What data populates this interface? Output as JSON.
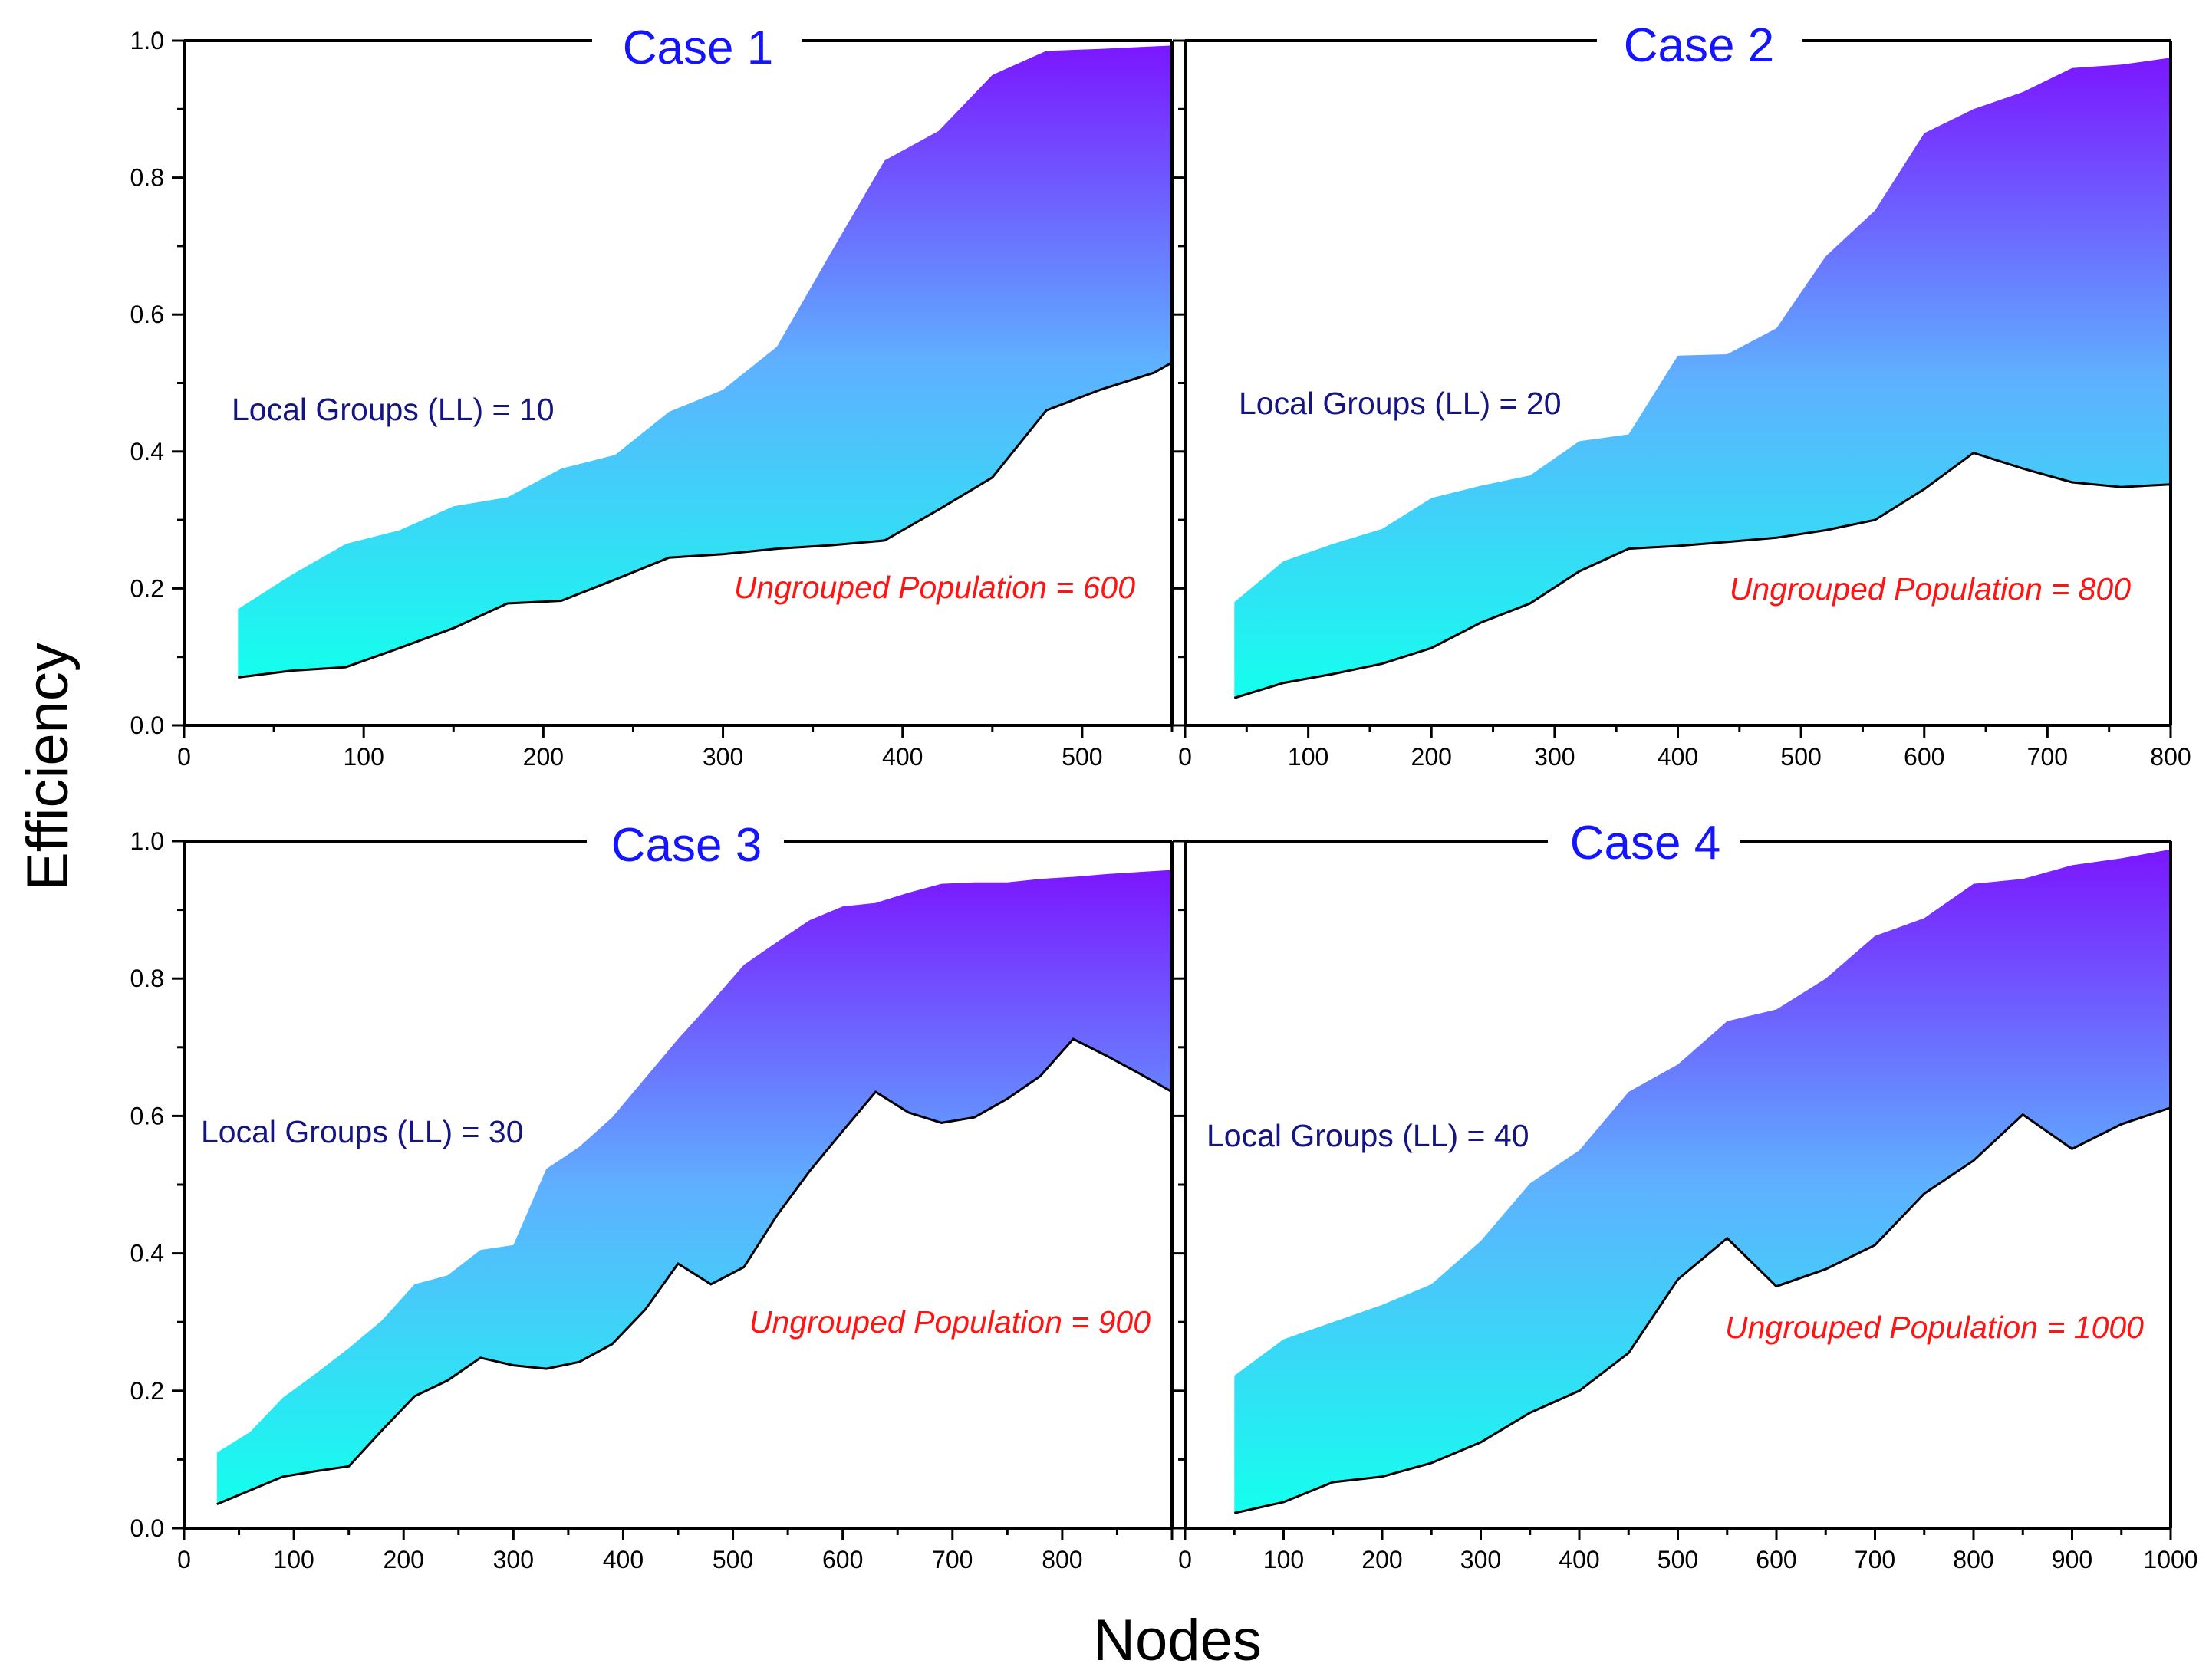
{
  "figure": {
    "ylabel": "Efficiency",
    "xlabel": "Nodes",
    "colors": {
      "band_top": "#7b16ff",
      "band_bottom": "#14ffee",
      "case_title": "#1414ff",
      "groups_label": "#141482",
      "population_label": "#ff1414"
    }
  },
  "chart_data": [
    {
      "type": "area",
      "title": "Case 1",
      "xlim": [
        0,
        550
      ],
      "ylim": [
        0,
        1.0
      ],
      "xticks": [
        "0",
        "100",
        "200",
        "300",
        "400",
        "500"
      ],
      "yticks": [
        "0.0",
        "0.2",
        "0.4",
        "0.6",
        "0.8",
        "1.0"
      ],
      "groups_label": "Local Groups (LL) = 10",
      "population_label": "Ungrouped Population = 600",
      "upper": [
        [
          30,
          0.17
        ],
        [
          60,
          0.22
        ],
        [
          90,
          0.265
        ],
        [
          120,
          0.285
        ],
        [
          150,
          0.32
        ],
        [
          180,
          0.333
        ],
        [
          210,
          0.375
        ],
        [
          240,
          0.395
        ],
        [
          270,
          0.458
        ],
        [
          300,
          0.49
        ],
        [
          330,
          0.553
        ],
        [
          360,
          0.69
        ],
        [
          390,
          0.825
        ],
        [
          420,
          0.868
        ],
        [
          450,
          0.95
        ],
        [
          480,
          0.985
        ],
        [
          510,
          0.988
        ],
        [
          550,
          0.993
        ]
      ],
      "lower": [
        [
          30,
          0.07
        ],
        [
          60,
          0.08
        ],
        [
          90,
          0.085
        ],
        [
          120,
          0.113
        ],
        [
          150,
          0.142
        ],
        [
          180,
          0.178
        ],
        [
          210,
          0.182
        ],
        [
          240,
          0.213
        ],
        [
          270,
          0.245
        ],
        [
          300,
          0.25
        ],
        [
          330,
          0.258
        ],
        [
          360,
          0.263
        ],
        [
          390,
          0.27
        ],
        [
          420,
          0.315
        ],
        [
          450,
          0.362
        ],
        [
          480,
          0.46
        ],
        [
          510,
          0.49
        ],
        [
          540,
          0.515
        ],
        [
          550,
          0.53
        ]
      ]
    },
    {
      "type": "area",
      "title": "Case 2",
      "xlim": [
        0,
        800
      ],
      "ylim": [
        0,
        1.0
      ],
      "xticks": [
        "0",
        "100",
        "200",
        "300",
        "400",
        "500",
        "600",
        "700",
        "800"
      ],
      "yticks": [],
      "groups_label": "Local Groups (LL) = 20",
      "population_label": "Ungrouped Population = 800",
      "upper": [
        [
          40,
          0.18
        ],
        [
          80,
          0.24
        ],
        [
          120,
          0.265
        ],
        [
          160,
          0.287
        ],
        [
          200,
          0.332
        ],
        [
          240,
          0.35
        ],
        [
          280,
          0.365
        ],
        [
          320,
          0.415
        ],
        [
          360,
          0.425
        ],
        [
          400,
          0.54
        ],
        [
          440,
          0.542
        ],
        [
          480,
          0.58
        ],
        [
          520,
          0.685
        ],
        [
          560,
          0.752
        ],
        [
          600,
          0.865
        ],
        [
          640,
          0.9
        ],
        [
          680,
          0.925
        ],
        [
          720,
          0.96
        ],
        [
          760,
          0.965
        ],
        [
          800,
          0.975
        ]
      ],
      "lower": [
        [
          40,
          0.04
        ],
        [
          80,
          0.062
        ],
        [
          120,
          0.075
        ],
        [
          160,
          0.09
        ],
        [
          200,
          0.113
        ],
        [
          240,
          0.15
        ],
        [
          280,
          0.178
        ],
        [
          320,
          0.225
        ],
        [
          360,
          0.258
        ],
        [
          400,
          0.262
        ],
        [
          440,
          0.268
        ],
        [
          480,
          0.274
        ],
        [
          520,
          0.285
        ],
        [
          560,
          0.3
        ],
        [
          600,
          0.345
        ],
        [
          640,
          0.398
        ],
        [
          680,
          0.375
        ],
        [
          720,
          0.355
        ],
        [
          760,
          0.348
        ],
        [
          800,
          0.352
        ]
      ]
    },
    {
      "type": "area",
      "title": "Case 3",
      "xlim": [
        0,
        900
      ],
      "ylim": [
        0,
        1.0
      ],
      "xticks": [
        "0",
        "100",
        "200",
        "300",
        "400",
        "500",
        "600",
        "700",
        "800"
      ],
      "yticks": [
        "0.0",
        "0.2",
        "0.4",
        "0.6",
        "0.8",
        "1.0"
      ],
      "groups_label": "Local Groups (LL) = 30",
      "population_label": "Ungrouped Population = 900",
      "upper": [
        [
          30,
          0.11
        ],
        [
          60,
          0.14
        ],
        [
          90,
          0.19
        ],
        [
          120,
          0.225
        ],
        [
          150,
          0.262
        ],
        [
          180,
          0.302
        ],
        [
          210,
          0.355
        ],
        [
          240,
          0.368
        ],
        [
          270,
          0.405
        ],
        [
          300,
          0.412
        ],
        [
          330,
          0.523
        ],
        [
          360,
          0.555
        ],
        [
          390,
          0.598
        ],
        [
          420,
          0.655
        ],
        [
          450,
          0.712
        ],
        [
          480,
          0.765
        ],
        [
          510,
          0.82
        ],
        [
          540,
          0.853
        ],
        [
          570,
          0.885
        ],
        [
          600,
          0.905
        ],
        [
          630,
          0.91
        ],
        [
          660,
          0.925
        ],
        [
          690,
          0.938
        ],
        [
          720,
          0.94
        ],
        [
          750,
          0.94
        ],
        [
          780,
          0.945
        ],
        [
          810,
          0.948
        ],
        [
          840,
          0.952
        ],
        [
          870,
          0.955
        ],
        [
          900,
          0.958
        ]
      ],
      "lower": [
        [
          30,
          0.035
        ],
        [
          60,
          0.055
        ],
        [
          90,
          0.075
        ],
        [
          120,
          0.083
        ],
        [
          150,
          0.09
        ],
        [
          180,
          0.142
        ],
        [
          210,
          0.192
        ],
        [
          240,
          0.215
        ],
        [
          270,
          0.248
        ],
        [
          300,
          0.237
        ],
        [
          330,
          0.232
        ],
        [
          360,
          0.242
        ],
        [
          390,
          0.268
        ],
        [
          420,
          0.318
        ],
        [
          450,
          0.385
        ],
        [
          480,
          0.355
        ],
        [
          510,
          0.38
        ],
        [
          540,
          0.455
        ],
        [
          570,
          0.52
        ],
        [
          600,
          0.578
        ],
        [
          630,
          0.635
        ],
        [
          660,
          0.605
        ],
        [
          690,
          0.59
        ],
        [
          720,
          0.598
        ],
        [
          750,
          0.625
        ],
        [
          780,
          0.658
        ],
        [
          810,
          0.712
        ],
        [
          840,
          0.688
        ],
        [
          870,
          0.662
        ],
        [
          900,
          0.635
        ]
      ]
    },
    {
      "type": "area",
      "title": "Case 4",
      "xlim": [
        0,
        1000
      ],
      "ylim": [
        0,
        1.0
      ],
      "xticks": [
        "0",
        "100",
        "200",
        "300",
        "400",
        "500",
        "600",
        "700",
        "800",
        "900",
        "1000"
      ],
      "yticks": [],
      "groups_label": "Local Groups (LL) = 40",
      "population_label": "Ungrouped Population = 1000",
      "upper": [
        [
          50,
          0.222
        ],
        [
          100,
          0.275
        ],
        [
          150,
          0.3
        ],
        [
          200,
          0.325
        ],
        [
          250,
          0.355
        ],
        [
          300,
          0.418
        ],
        [
          350,
          0.502
        ],
        [
          400,
          0.55
        ],
        [
          450,
          0.635
        ],
        [
          500,
          0.675
        ],
        [
          550,
          0.738
        ],
        [
          600,
          0.755
        ],
        [
          650,
          0.8
        ],
        [
          700,
          0.862
        ],
        [
          750,
          0.888
        ],
        [
          800,
          0.938
        ],
        [
          850,
          0.945
        ],
        [
          900,
          0.965
        ],
        [
          950,
          0.975
        ],
        [
          1000,
          0.988
        ]
      ],
      "lower": [
        [
          50,
          0.022
        ],
        [
          100,
          0.038
        ],
        [
          150,
          0.067
        ],
        [
          200,
          0.075
        ],
        [
          250,
          0.095
        ],
        [
          300,
          0.125
        ],
        [
          350,
          0.168
        ],
        [
          400,
          0.2
        ],
        [
          450,
          0.255
        ],
        [
          500,
          0.362
        ],
        [
          550,
          0.422
        ],
        [
          600,
          0.352
        ],
        [
          650,
          0.377
        ],
        [
          700,
          0.412
        ],
        [
          750,
          0.487
        ],
        [
          800,
          0.535
        ],
        [
          850,
          0.602
        ],
        [
          900,
          0.552
        ],
        [
          950,
          0.588
        ],
        [
          1000,
          0.612
        ]
      ]
    }
  ]
}
